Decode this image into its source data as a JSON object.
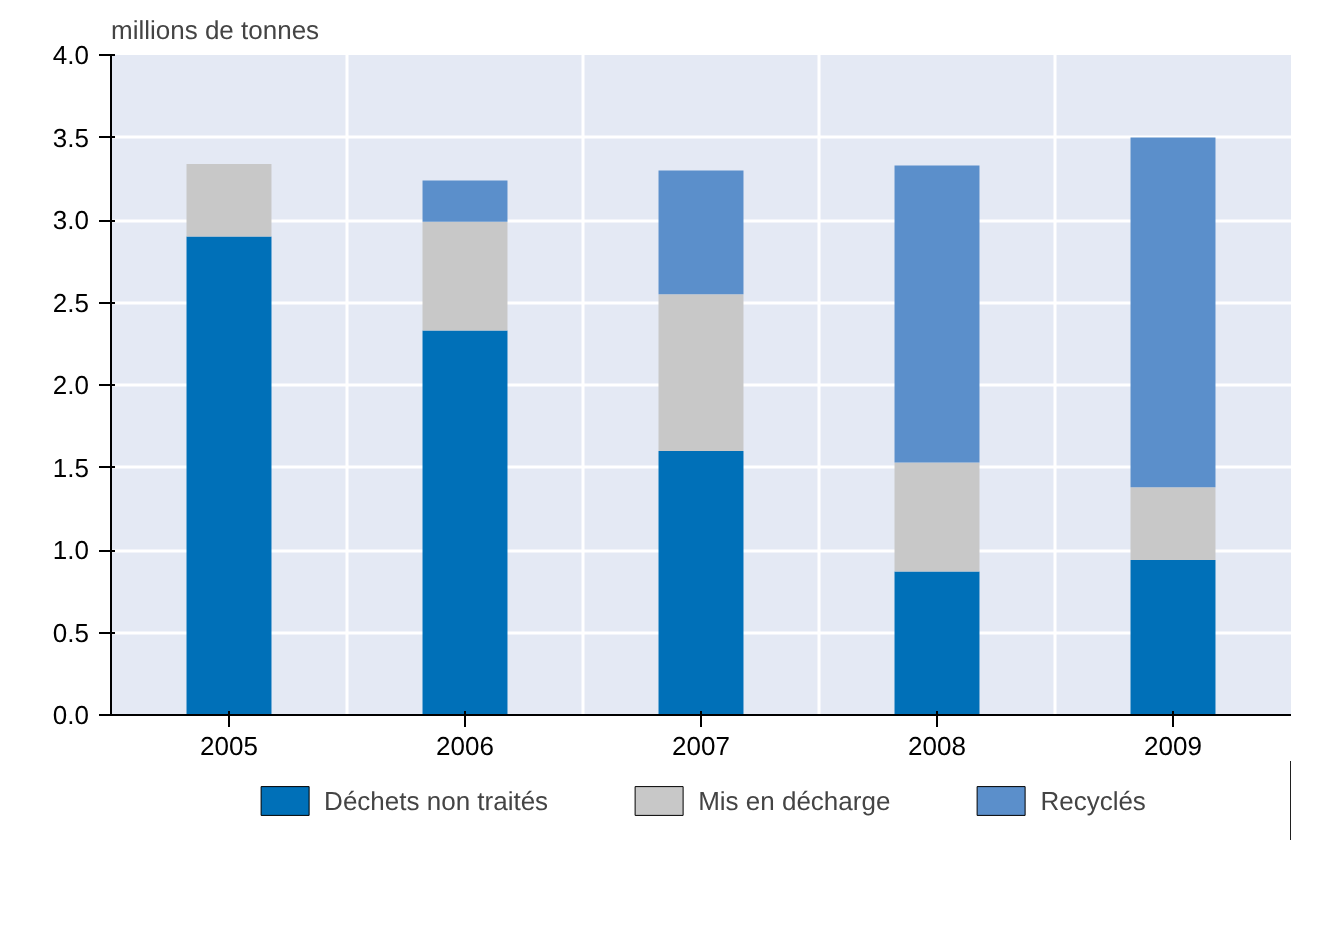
{
  "chart_data": {
    "type": "bar",
    "stacked": true,
    "ylabel": "millions de tonnes",
    "categories": [
      "2005",
      "2006",
      "2007",
      "2008",
      "2009"
    ],
    "series": [
      {
        "name": "Déchets non traités",
        "color": "#0070b8",
        "values": [
          2.9,
          2.33,
          1.6,
          0.87,
          0.94
        ]
      },
      {
        "name": "Mis en décharge",
        "color": "#c8c8c8",
        "values": [
          0.44,
          0.66,
          0.95,
          0.66,
          0.44
        ]
      },
      {
        "name": "Recyclés",
        "color": "#5b8fcb",
        "values": [
          null,
          0.25,
          0.75,
          1.8,
          2.12
        ]
      }
    ],
    "ylim": [
      0,
      4.0
    ],
    "yticks": [
      {
        "value": 0,
        "label": "0.0"
      },
      0.5,
      {
        "value": 1,
        "label": "1.0"
      },
      1.5,
      {
        "value": 2,
        "label": "2.0"
      },
      2.5,
      {
        "value": 3,
        "label": "3.0"
      },
      3.5,
      {
        "value": 4,
        "label": "4.0"
      }
    ],
    "grid": true,
    "legend": "bottom"
  }
}
